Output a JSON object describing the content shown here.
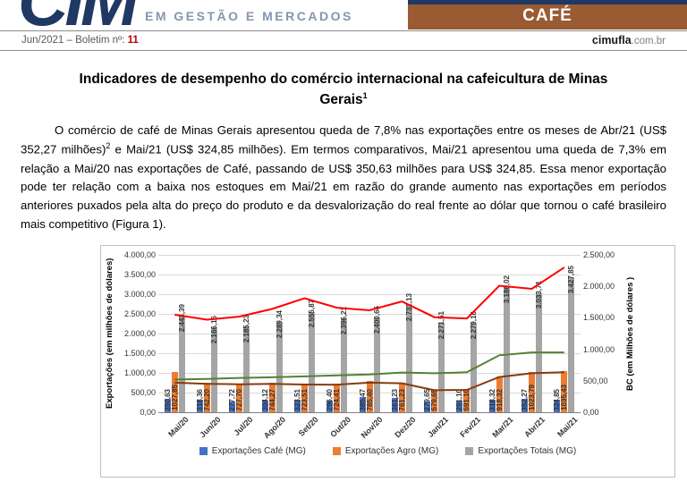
{
  "header": {
    "logo": "CIM",
    "tagline": "EM GESTÃO E MERCADOS",
    "category_banner": "CAFÉ"
  },
  "meta": {
    "issue_prefix": "Jun/2021 – Boletim nº: ",
    "issue_number": "11",
    "site_bold": "cimufla",
    "site_suffix": ".com.br"
  },
  "title": {
    "text": "Indicadores de desempenho do comércio internacional na cafeicultura de Minas Gerais",
    "superscript": "1"
  },
  "body": {
    "paragraph_part1": "O comércio de café de Minas Gerais apresentou queda de 7,8% nas exportações entre os meses de Abr/21 (US$ 352,27 milhões)",
    "footnote_marker": "2",
    "paragraph_part2": " e Mai/21 (US$ 324,85 milhões). Em termos comparativos, Mai/21 apresentou uma queda de 7,3% em relação a Mai/20 nas exportações de Café, passando de US$ 350,63 milhões para US$ 324,85. Essa menor exportação pode ter relação com a baixa nos estoques em Mai/21 em razão do grande aumento nas exportações em períodos anteriores puxados pela alta do preço do produto e da desvalorização do real frente ao dólar que tornou o café brasileiro mais competitivo (Figura 1)."
  },
  "chart_data": {
    "type": "bar",
    "subtype": "bar+line combo, dual axis",
    "categories": [
      "Mai/20",
      "Jun/20",
      "Jul/20",
      "Ago/20",
      "Set/20",
      "Out/20",
      "Nov/20",
      "Dez/20",
      "Jan/21",
      "Fev/21",
      "Mar/21",
      "Abr/21",
      "Mai/21"
    ],
    "bar_series": [
      {
        "name": "Exportações Café (MG)",
        "color": "#4472C4",
        "labels": [
          "350,63",
          "318,36",
          "277,72",
          "304,12",
          "323,51",
          "296,40",
          "385,47",
          "361,23",
          "279,65",
          "291,10",
          "318,32",
          "352,27",
          "324,85"
        ]
      },
      {
        "name": "Exportações Agro (MG)",
        "color": "#ED7D31",
        "labels": [
          "1027,85",
          "742,20",
          "727,70",
          "744,27",
          "723,51",
          "724,41",
          "785,40",
          "761,23",
          "579,65",
          "591,10",
          "918,32",
          "1023,79",
          "1035,43"
        ]
      },
      {
        "name": "Exportações Totais (MG)",
        "color": "#A5A5A5",
        "labels": [
          "2.443,39",
          "2.166,16",
          "2.185,23",
          "2.289,34",
          "2.555,87",
          "2.396,21",
          "2.400,66",
          "2.732,13",
          "2.271,51",
          "2.279,16",
          "3.186,02",
          "3.033,71",
          "3.427,85"
        ]
      }
    ],
    "line_series": [
      {
        "name": "linha vermelha (eixo direito)",
        "color": "#FF0000",
        "values": [
          1550,
          1470,
          1520,
          1640,
          1810,
          1660,
          1620,
          1760,
          1510,
          1490,
          2010,
          1960,
          2300
        ]
      },
      {
        "name": "linha verde (eixo direito)",
        "color": "#538135",
        "values": [
          520,
          530,
          545,
          555,
          570,
          585,
          600,
          630,
          620,
          635,
          905,
          950,
          950
        ]
      },
      {
        "name": "linha marrom (eixo direito)",
        "color": "#843C0C",
        "values": [
          470,
          450,
          445,
          450,
          440,
          438,
          470,
          460,
          350,
          355,
          560,
          620,
          635
        ]
      }
    ],
    "left_axis": {
      "label": "Exportações (em milhões de dólares)",
      "max": 4000,
      "ticks": [
        "4.000,00",
        "3.500,00",
        "3.000,00",
        "2.500,00",
        "2.000,00",
        "1.500,00",
        "1.000,00",
        "500,00",
        "0,00"
      ]
    },
    "right_axis": {
      "label": "BC  (em Milhões de dólares )",
      "max": 2500,
      "ticks": [
        "2.500,00",
        "2.000,00",
        "1.500,00",
        "1.000,00",
        "500,00",
        "0,00"
      ]
    },
    "legend_position": "bottom",
    "grid": true
  }
}
